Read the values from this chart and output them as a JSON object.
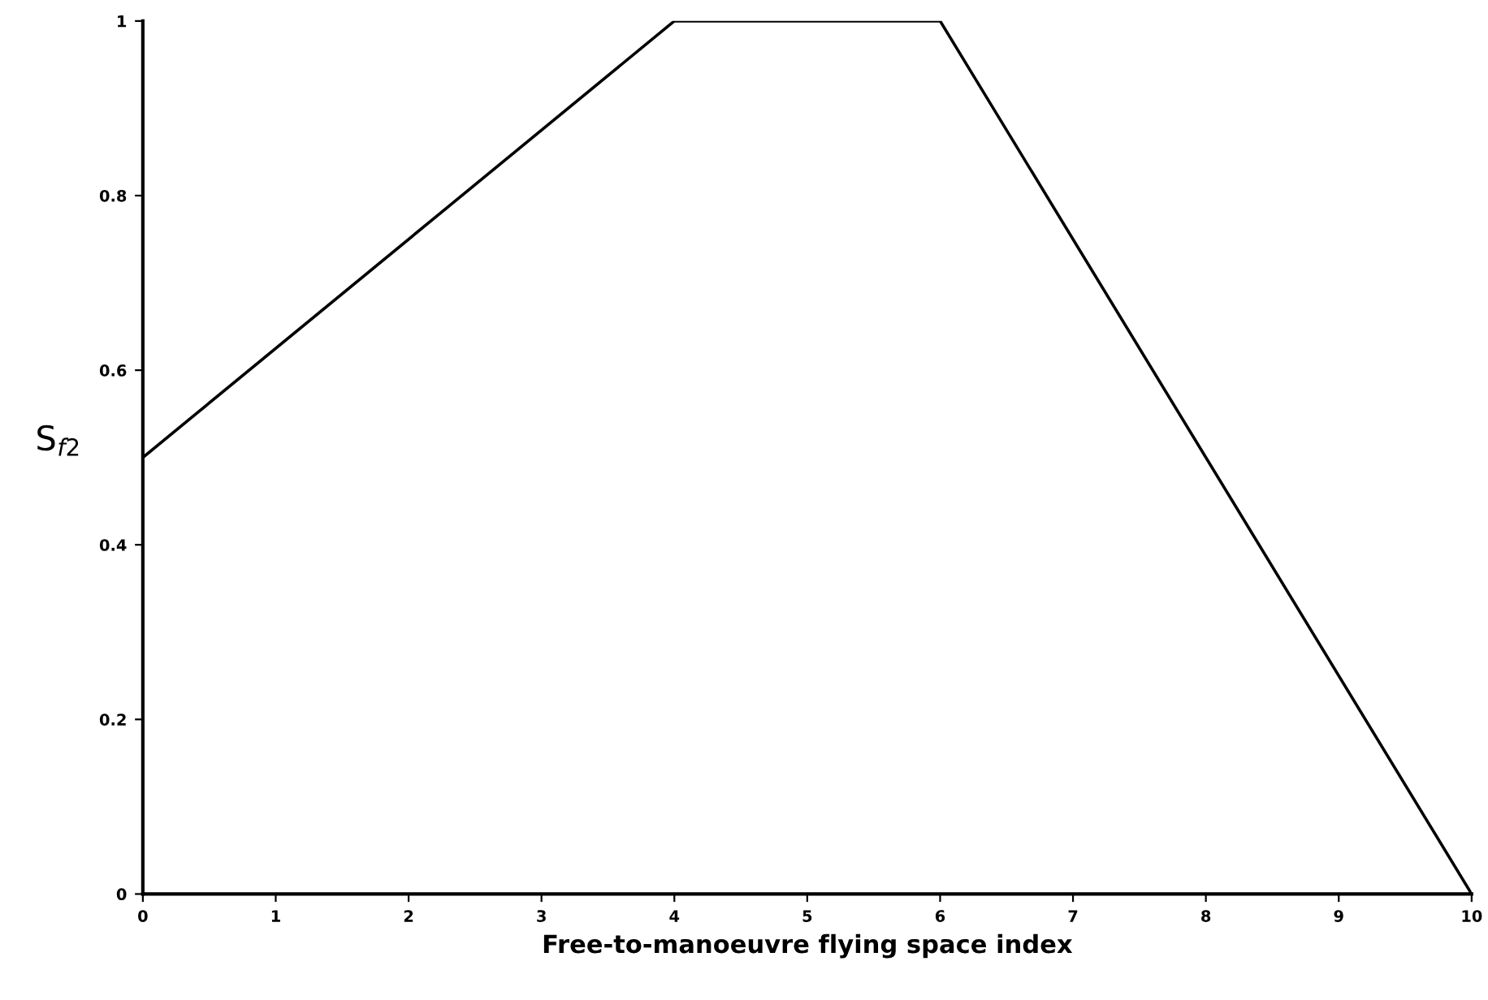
{
  "chart_data": {
    "type": "line",
    "xlabel": "Free-to-manoeuvre flying space index",
    "ylabel": "S$_{f2}$",
    "series": [
      {
        "color": "#000000",
        "x": [
          0,
          4,
          6,
          10
        ],
        "values": [
          0.5,
          1,
          1,
          0
        ]
      }
    ],
    "xlim": [
      0,
      10
    ],
    "ylim": [
      0,
      1
    ],
    "xticks": [
      0,
      1,
      2,
      3,
      4,
      5,
      6,
      7,
      8,
      9,
      10
    ],
    "yticks": [
      0,
      0.2,
      0.4,
      0.6,
      0.8,
      1
    ],
    "grid": false,
    "legend": false,
    "marker": "none",
    "line_style": "solid"
  }
}
